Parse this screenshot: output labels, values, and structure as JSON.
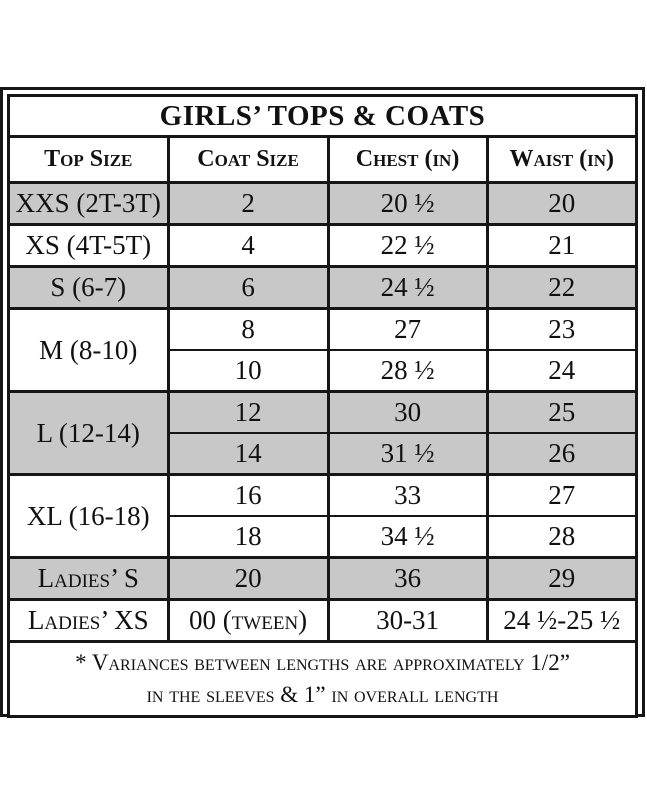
{
  "colors": {
    "border": "#161616",
    "shaded_row_bg": "#c8c8c8",
    "plain_row_bg": "#ffffff",
    "text": "#111111",
    "page_bg": "#ffffff"
  },
  "chart": {
    "title": "GIRLS’ TOPS & COATS",
    "columns": [
      "Top Size",
      "Coat Size",
      "Chest (in)",
      "Waist (in)"
    ],
    "groups": [
      {
        "top_size": "XXS (2T-3T)",
        "shade": "gray",
        "rows": [
          {
            "coat": "2",
            "chest": "20 ½",
            "waist": "20"
          }
        ]
      },
      {
        "top_size": "XS (4T-5T)",
        "shade": "white",
        "rows": [
          {
            "coat": "4",
            "chest": "22 ½",
            "waist": "21"
          }
        ]
      },
      {
        "top_size": "S (6-7)",
        "shade": "gray",
        "rows": [
          {
            "coat": "6",
            "chest": "24 ½",
            "waist": "22"
          }
        ]
      },
      {
        "top_size": "M (8-10)",
        "shade": "white",
        "rows": [
          {
            "coat": "8",
            "chest": "27",
            "waist": "23"
          },
          {
            "coat": "10",
            "chest": "28 ½",
            "waist": "24"
          }
        ]
      },
      {
        "top_size": "L (12-14)",
        "shade": "gray",
        "rows": [
          {
            "coat": "12",
            "chest": "30",
            "waist": "25"
          },
          {
            "coat": "14",
            "chest": "31 ½",
            "waist": "26"
          }
        ]
      },
      {
        "top_size": "XL (16-18)",
        "shade": "white",
        "rows": [
          {
            "coat": "16",
            "chest": "33",
            "waist": "27"
          },
          {
            "coat": "18",
            "chest": "34 ½",
            "waist": "28"
          }
        ]
      },
      {
        "top_size": "Ladies’ S",
        "shade": "gray",
        "rows": [
          {
            "coat": "20",
            "chest": "36",
            "waist": "29"
          }
        ]
      },
      {
        "top_size": "Ladies’ XS",
        "shade": "white",
        "rows": [
          {
            "coat": "00 (tween)",
            "chest": "30-31",
            "waist": "24 ½-25 ½"
          }
        ]
      }
    ],
    "footnote_line1": "* Variances between lengths are approximately 1/2”",
    "footnote_line2": "in the sleeves & 1” in overall length"
  },
  "chart_data": {
    "type": "table",
    "title": "GIRLS’ TOPS & COATS",
    "columns": [
      "Top Size",
      "Coat Size",
      "Chest (in)",
      "Waist (in)"
    ],
    "rows": [
      [
        "XXS (2T-3T)",
        "2",
        "20 ½",
        "20"
      ],
      [
        "XS (4T-5T)",
        "4",
        "22 ½",
        "21"
      ],
      [
        "S (6-7)",
        "6",
        "24 ½",
        "22"
      ],
      [
        "M (8-10)",
        "8",
        "27",
        "23"
      ],
      [
        "M (8-10)",
        "10",
        "28 ½",
        "24"
      ],
      [
        "L (12-14)",
        "12",
        "30",
        "25"
      ],
      [
        "L (12-14)",
        "14",
        "31 ½",
        "26"
      ],
      [
        "XL (16-18)",
        "16",
        "33",
        "27"
      ],
      [
        "XL (16-18)",
        "18",
        "34 ½",
        "28"
      ],
      [
        "Ladies’ S",
        "20",
        "36",
        "29"
      ],
      [
        "Ladies’ XS",
        "00 (tween)",
        "30-31",
        "24 ½-25 ½"
      ]
    ],
    "merged_first_column_groups": [
      "XXS (2T-3T)",
      "XS (4T-5T)",
      "S (6-7)",
      "M (8-10)",
      "L (12-14)",
      "XL (16-18)",
      "Ladies’ S",
      "Ladies’ XS"
    ],
    "row_shading": [
      "gray",
      "white",
      "gray",
      "white",
      "white",
      "gray",
      "gray",
      "white",
      "white",
      "gray",
      "white"
    ],
    "footnote": "* Variances between lengths are approximately 1/2” in the sleeves & 1” in overall length",
    "layout_hints": {
      "grid": "full black cell borders",
      "outer": "double framed border",
      "header_style": "bold small-caps",
      "title_style": "bold uppercase serif"
    }
  }
}
